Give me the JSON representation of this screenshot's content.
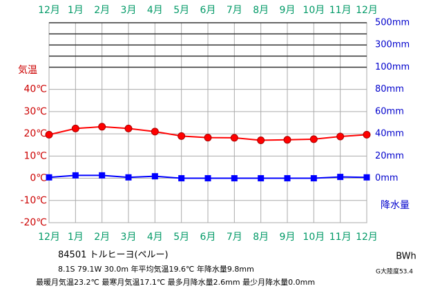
{
  "chart_data": {
    "type": "climate",
    "categories": [
      "12月",
      "1月",
      "2月",
      "3月",
      "4月",
      "5月",
      "6月",
      "7月",
      "8月",
      "9月",
      "10月",
      "11月",
      "12月"
    ],
    "ylabel": "気温",
    "y2label": "降水量",
    "ylim": [
      -20,
      70
    ],
    "yticks": [
      {
        "value": -20,
        "label": "-20℃"
      },
      {
        "value": -10,
        "label": "-10℃"
      },
      {
        "value": 0,
        "label": "0℃"
      },
      {
        "value": 10,
        "label": "10℃"
      },
      {
        "value": 20,
        "label": "20℃"
      },
      {
        "value": 30,
        "label": "30℃"
      },
      {
        "value": 40,
        "label": "40℃"
      }
    ],
    "y2lim": [
      0,
      500
    ],
    "y2ticks": [
      {
        "value": 0,
        "label": "0mm"
      },
      {
        "value": 20,
        "label": "20mm"
      },
      {
        "value": 40,
        "label": "40mm"
      },
      {
        "value": 60,
        "label": "60mm"
      },
      {
        "value": 80,
        "label": "80mm"
      },
      {
        "value": 100,
        "label": "100mm"
      },
      {
        "value": 300,
        "label": "300mm"
      },
      {
        "value": 500,
        "label": "500mm"
      }
    ],
    "y2grid": [
      100,
      200,
      300,
      400,
      500
    ],
    "series": [
      {
        "name": "気温",
        "color": "#ff0000",
        "values": [
          19.6,
          22.4,
          23.2,
          22.4,
          21.0,
          19.0,
          18.3,
          18.2,
          17.1,
          17.3,
          17.6,
          18.8,
          19.6
        ]
      },
      {
        "name": "降水量",
        "color": "#0000ff",
        "axis": "y2",
        "values": [
          0.8,
          2.6,
          2.6,
          0.8,
          1.8,
          0,
          0,
          0,
          0,
          0,
          0,
          1.2,
          0.8
        ]
      }
    ],
    "station": "84501 トルヒーヨ(ペルー)",
    "info1": "8.1S 79.1W 30.0m 年平均気温19.6℃ 年降水量9.8mm",
    "info2": "最暖月気温23.2℃ 最寒月気温17.1℃ 最多月降水量2.6mm 最少月降水量0.0mm",
    "climate_class": "BWh",
    "continentality": "G大陸度53.4"
  }
}
